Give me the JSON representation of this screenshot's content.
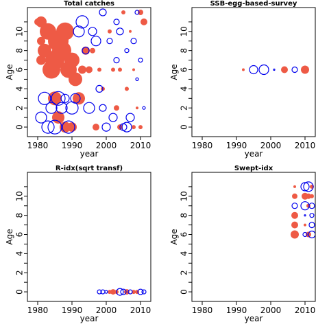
{
  "colors": {
    "positive": "#ee5a45",
    "negative": "#0000ee",
    "frame": "#000000"
  },
  "chart_data": [
    {
      "type": "bubble",
      "title": "Total catches",
      "xlabel": "year",
      "ylabel": "Age",
      "xlim": [
        1977,
        2013
      ],
      "ylim": [
        -1,
        12.5
      ],
      "x_ticks": [
        1980,
        1990,
        2000,
        2010
      ],
      "y_ticks": [
        0,
        2,
        4,
        6,
        8,
        10
      ],
      "series": [
        {
          "name": "",
          "sign": "positive",
          "points": [
            [
              1980,
              11,
              5
            ],
            [
              1981,
              11,
              8
            ],
            [
              1981,
              9,
              6
            ],
            [
              1981,
              7,
              7
            ],
            [
              1982,
              8,
              10
            ],
            [
              1983,
              10,
              12
            ],
            [
              1984,
              6,
              13
            ],
            [
              1985,
              7,
              14
            ],
            [
              1986,
              9,
              15
            ],
            [
              1987,
              8,
              14
            ],
            [
              1988,
              10,
              13
            ],
            [
              1989,
              6,
              12
            ],
            [
              1990,
              7,
              11
            ],
            [
              1991,
              5,
              10
            ],
            [
              1992,
              3,
              9
            ],
            [
              1985,
              3,
              10
            ],
            [
              1986,
              1,
              9
            ],
            [
              1988,
              0,
              8
            ],
            [
              1990,
              0,
              7
            ],
            [
              1993,
              6,
              6
            ],
            [
              1994,
              8,
              6
            ],
            [
              1995,
              6,
              5
            ],
            [
              1996,
              8,
              4
            ],
            [
              1997,
              0,
              5
            ],
            [
              1998,
              6,
              3
            ],
            [
              1999,
              4,
              3
            ],
            [
              2001,
              10,
              3
            ],
            [
              2002,
              6,
              3
            ],
            [
              2003,
              2,
              4
            ],
            [
              2004,
              6,
              3
            ],
            [
              2005,
              12,
              3
            ],
            [
              2006,
              4,
              3
            ],
            [
              2007,
              10,
              2
            ],
            [
              2008,
              6,
              2
            ],
            [
              2009,
              2,
              2
            ],
            [
              2010,
              12,
              4
            ],
            [
              2011,
              11,
              5
            ],
            [
              2004,
              0,
              4
            ],
            [
              2008,
              0,
              3
            ],
            [
              2010,
              0,
              3
            ]
          ]
        },
        {
          "name": "",
          "sign": "negative",
          "points": [
            [
              1982,
              3,
              9
            ],
            [
              1981,
              1,
              8
            ],
            [
              1983,
              0,
              9
            ],
            [
              1984,
              2,
              8
            ],
            [
              1985,
              0,
              10
            ],
            [
              1986,
              3,
              10
            ],
            [
              1987,
              2,
              8
            ],
            [
              1988,
              3,
              6
            ],
            [
              1989,
              0,
              9
            ],
            [
              1990,
              2,
              9
            ],
            [
              1991,
              3,
              7
            ],
            [
              1992,
              10,
              8
            ],
            [
              1993,
              11,
              9
            ],
            [
              1994,
              8,
              5
            ],
            [
              1995,
              2,
              8
            ],
            [
              1996,
              10,
              6
            ],
            [
              1997,
              9,
              7
            ],
            [
              1998,
              4,
              5
            ],
            [
              1999,
              12,
              5
            ],
            [
              2000,
              0,
              6
            ],
            [
              2001,
              9,
              4
            ],
            [
              2002,
              1,
              6
            ],
            [
              2003,
              7,
              4
            ],
            [
              2004,
              10,
              5
            ],
            [
              2005,
              0,
              5
            ],
            [
              2006,
              0,
              7
            ],
            [
              2007,
              1,
              6
            ],
            [
              2008,
              9,
              4
            ],
            [
              2009,
              12,
              3
            ],
            [
              2010,
              7,
              3
            ],
            [
              2011,
              2,
              2
            ],
            [
              1999,
              2,
              5
            ],
            [
              2003,
              11,
              4
            ],
            [
              2006,
              8,
              3
            ],
            [
              2009,
              5,
              2
            ]
          ]
        }
      ]
    },
    {
      "type": "bubble",
      "title": "SSB-egg-based-survey",
      "xlabel": "year",
      "ylabel": "Age",
      "xlim": [
        1977,
        2013
      ],
      "ylim": [
        -1,
        12.5
      ],
      "x_ticks": [
        1980,
        1990,
        2000,
        2010
      ],
      "y_ticks": [
        0,
        2,
        4,
        6,
        8,
        10
      ],
      "series": [
        {
          "name": "",
          "sign": "positive",
          "points": [
            [
              1992,
              6,
              2
            ],
            [
              2004,
              6,
              5
            ],
            [
              2010,
              6,
              6
            ]
          ]
        },
        {
          "name": "",
          "sign": "negative",
          "points": [
            [
              1995,
              6,
              6
            ],
            [
              1998,
              6,
              7
            ],
            [
              2001,
              6,
              1
            ],
            [
              2007,
              6,
              4
            ]
          ]
        }
      ]
    },
    {
      "type": "bubble",
      "title": "R-idx(sqrt transf)",
      "xlabel": "year",
      "ylabel": "Age",
      "xlim": [
        1977,
        2013
      ],
      "ylim": [
        -1,
        12.5
      ],
      "x_ticks": [
        1980,
        1990,
        2000,
        2010
      ],
      "y_ticks": [
        0,
        2,
        4,
        6,
        8,
        10
      ],
      "series": [
        {
          "name": "",
          "sign": "positive",
          "points": [
            [
              2001,
              0,
              3
            ],
            [
              2002,
              0,
              4
            ],
            [
              2003,
              0,
              3
            ],
            [
              2006,
              0,
              4
            ],
            [
              2008,
              0,
              3
            ],
            [
              2009,
              0,
              3
            ]
          ]
        },
        {
          "name": "",
          "sign": "negative",
          "points": [
            [
              1998,
              0,
              3
            ],
            [
              1999,
              0,
              3
            ],
            [
              2000,
              0,
              2
            ],
            [
              2004,
              0,
              5
            ],
            [
              2005,
              0,
              4
            ],
            [
              2007,
              0,
              3
            ],
            [
              2010,
              0,
              4
            ],
            [
              2011,
              0,
              3
            ]
          ]
        }
      ]
    },
    {
      "type": "bubble",
      "title": "Swept-idx",
      "xlabel": "year",
      "ylabel": "Age",
      "xlim": [
        1977,
        2013
      ],
      "ylim": [
        -1,
        12.5
      ],
      "x_ticks": [
        1980,
        1990,
        2000,
        2010
      ],
      "y_ticks": [
        0,
        2,
        4,
        6,
        8,
        10
      ],
      "series": [
        {
          "name": "",
          "sign": "positive",
          "points": [
            [
              2007,
              11,
              2
            ],
            [
              2007,
              10,
              4
            ],
            [
              2007,
              8,
              5
            ],
            [
              2007,
              7,
              5
            ],
            [
              2007,
              6,
              6
            ],
            [
              2010,
              10,
              5
            ],
            [
              2010,
              7,
              2
            ],
            [
              2011,
              6,
              4
            ],
            [
              2011,
              10,
              4
            ],
            [
              2012,
              11,
              3
            ],
            [
              2012,
              10,
              3
            ],
            [
              2011,
              9,
              3
            ]
          ]
        },
        {
          "name": "",
          "sign": "negative",
          "points": [
            [
              2010,
              11,
              6
            ],
            [
              2011,
              11,
              7
            ],
            [
              2007,
              9,
              4
            ],
            [
              2010,
              9,
              6
            ],
            [
              2012,
              9,
              4
            ],
            [
              2010,
              8,
              1
            ],
            [
              2012,
              8,
              3
            ],
            [
              2012,
              7,
              4
            ],
            [
              2010,
              6,
              3
            ],
            [
              2012,
              6,
              5
            ]
          ]
        }
      ]
    }
  ]
}
